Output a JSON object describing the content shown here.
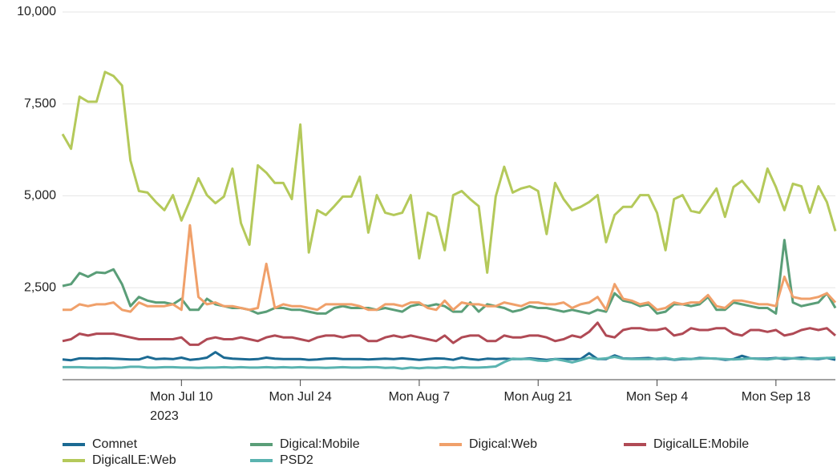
{
  "chart_data": {
    "type": "line",
    "x": [
      "2023-06-26",
      "2023-06-27",
      "2023-06-28",
      "2023-06-29",
      "2023-06-30",
      "2023-07-01",
      "2023-07-02",
      "2023-07-03",
      "2023-07-04",
      "2023-07-05",
      "2023-07-06",
      "2023-07-07",
      "2023-07-08",
      "2023-07-09",
      "2023-07-10",
      "2023-07-11",
      "2023-07-12",
      "2023-07-13",
      "2023-07-14",
      "2023-07-15",
      "2023-07-16",
      "2023-07-17",
      "2023-07-18",
      "2023-07-19",
      "2023-07-20",
      "2023-07-21",
      "2023-07-22",
      "2023-07-23",
      "2023-07-24",
      "2023-07-25",
      "2023-07-26",
      "2023-07-27",
      "2023-07-28",
      "2023-07-29",
      "2023-07-30",
      "2023-07-31",
      "2023-08-01",
      "2023-08-02",
      "2023-08-03",
      "2023-08-04",
      "2023-08-05",
      "2023-08-06",
      "2023-08-07",
      "2023-08-08",
      "2023-08-09",
      "2023-08-10",
      "2023-08-11",
      "2023-08-12",
      "2023-08-13",
      "2023-08-14",
      "2023-08-15",
      "2023-08-16",
      "2023-08-17",
      "2023-08-18",
      "2023-08-19",
      "2023-08-20",
      "2023-08-21",
      "2023-08-22",
      "2023-08-23",
      "2023-08-24",
      "2023-08-25",
      "2023-08-26",
      "2023-08-27",
      "2023-08-28",
      "2023-08-29",
      "2023-08-30",
      "2023-08-31",
      "2023-09-01",
      "2023-09-02",
      "2023-09-03",
      "2023-09-04",
      "2023-09-05",
      "2023-09-06",
      "2023-09-07",
      "2023-09-08",
      "2023-09-09",
      "2023-09-10",
      "2023-09-11",
      "2023-09-12",
      "2023-09-13",
      "2023-09-14",
      "2023-09-15",
      "2023-09-16",
      "2023-09-17",
      "2023-09-18",
      "2023-09-19",
      "2023-09-20",
      "2023-09-21",
      "2023-09-22",
      "2023-09-23",
      "2023-09-24",
      "2023-09-25"
    ],
    "xlim": [
      "2023-06-26",
      "2023-09-25"
    ],
    "xticks": [
      {
        "value": "2023-07-10",
        "label": "Mon Jul 10",
        "sublabel": "2023"
      },
      {
        "value": "2023-07-24",
        "label": "Mon Jul 24"
      },
      {
        "value": "2023-08-07",
        "label": "Mon Aug 7"
      },
      {
        "value": "2023-08-21",
        "label": "Mon Aug 21"
      },
      {
        "value": "2023-09-04",
        "label": "Mon Sep 4"
      },
      {
        "value": "2023-09-18",
        "label": "Mon Sep 18"
      }
    ],
    "ylim": [
      0,
      10000
    ],
    "yticks": [
      {
        "value": 2500,
        "label": "2,500"
      },
      {
        "value": 5000,
        "label": "5,000"
      },
      {
        "value": 7500,
        "label": "7,500"
      },
      {
        "value": 10000,
        "label": "10,000"
      }
    ],
    "grid": true,
    "series": [
      {
        "name": "Comnet",
        "color": "#1b6a93",
        "values": [
          550,
          530,
          580,
          580,
          570,
          580,
          570,
          560,
          550,
          550,
          620,
          560,
          570,
          560,
          600,
          540,
          560,
          600,
          750,
          600,
          570,
          560,
          550,
          560,
          600,
          570,
          560,
          560,
          560,
          540,
          550,
          570,
          580,
          560,
          560,
          560,
          550,
          560,
          570,
          560,
          580,
          560,
          540,
          560,
          580,
          570,
          540,
          600,
          560,
          540,
          570,
          560,
          570,
          560,
          560,
          580,
          560,
          540,
          560,
          560,
          560,
          560,
          720,
          560,
          560,
          660,
          580,
          570,
          580,
          590,
          560,
          570,
          540,
          560,
          560,
          590,
          580,
          570,
          540,
          560,
          650,
          580,
          570,
          570,
          590,
          560,
          580,
          600,
          570,
          560,
          590,
          540
        ]
      },
      {
        "name": "Digical:Mobile",
        "color": "#5a9e78",
        "values": [
          2550,
          2600,
          2900,
          2800,
          2920,
          2900,
          3000,
          2600,
          2000,
          2250,
          2150,
          2100,
          2100,
          2050,
          2200,
          1900,
          1900,
          2200,
          2050,
          2000,
          1950,
          1950,
          1900,
          1800,
          1850,
          1950,
          1950,
          1900,
          1900,
          1850,
          1800,
          1800,
          1950,
          2000,
          1950,
          1950,
          1950,
          1900,
          1950,
          1900,
          1850,
          2000,
          2050,
          2000,
          2050,
          2000,
          1850,
          1850,
          2100,
          1850,
          2050,
          2000,
          1950,
          1850,
          1900,
          2000,
          1950,
          1950,
          1900,
          1850,
          1900,
          1850,
          1800,
          1900,
          1850,
          2350,
          2150,
          2100,
          2000,
          2050,
          1800,
          1850,
          2050,
          2050,
          2000,
          2050,
          2250,
          1900,
          1900,
          2100,
          2050,
          2000,
          1950,
          1950,
          1800,
          3800,
          2100,
          2000,
          2050,
          2100,
          2350,
          1950
        ]
      },
      {
        "name": "Digical:Web",
        "color": "#f0a06a",
        "values": [
          1900,
          1900,
          2050,
          2000,
          2050,
          2050,
          2100,
          1900,
          1850,
          2100,
          2000,
          2000,
          2000,
          2050,
          1900,
          4200,
          2250,
          2050,
          2100,
          2000,
          2000,
          1950,
          1900,
          1950,
          3150,
          1950,
          2050,
          2000,
          2000,
          1950,
          1900,
          2050,
          2050,
          2050,
          2050,
          2000,
          1900,
          1900,
          2050,
          2050,
          2000,
          2100,
          2100,
          1950,
          1900,
          2150,
          1900,
          2100,
          2050,
          2050,
          2000,
          2000,
          2100,
          2050,
          2000,
          2100,
          2100,
          2050,
          2050,
          2100,
          1950,
          2050,
          2100,
          2250,
          1900,
          2600,
          2200,
          2150,
          2050,
          2100,
          1900,
          1950,
          2100,
          2050,
          2100,
          2100,
          2300,
          2000,
          1950,
          2150,
          2150,
          2100,
          2050,
          2050,
          2000,
          2800,
          2250,
          2200,
          2200,
          2250,
          2350,
          2100
        ]
      },
      {
        "name": "DigicalLE:Mobile",
        "color": "#b04a55",
        "values": [
          1050,
          1100,
          1250,
          1200,
          1250,
          1250,
          1250,
          1200,
          1150,
          1100,
          1100,
          1100,
          1100,
          1100,
          1150,
          950,
          950,
          1100,
          1150,
          1100,
          1100,
          1150,
          1100,
          1050,
          1150,
          1200,
          1150,
          1150,
          1100,
          1050,
          1150,
          1200,
          1200,
          1150,
          1200,
          1200,
          1050,
          1050,
          1150,
          1200,
          1150,
          1200,
          1150,
          1100,
          1050,
          1200,
          1000,
          1150,
          1200,
          1200,
          1050,
          1050,
          1200,
          1150,
          1150,
          1200,
          1200,
          1150,
          1050,
          1100,
          1200,
          1150,
          1300,
          1550,
          1200,
          1150,
          1350,
          1400,
          1400,
          1350,
          1350,
          1400,
          1200,
          1250,
          1400,
          1350,
          1350,
          1400,
          1400,
          1250,
          1200,
          1350,
          1350,
          1300,
          1350,
          1200,
          1250,
          1350,
          1400,
          1350,
          1400,
          1200
        ]
      },
      {
        "name": "DigicalLE:Web",
        "color": "#b4c95a",
        "values": [
          6680,
          6280,
          7700,
          7560,
          7560,
          8370,
          8260,
          8000,
          5960,
          5130,
          5090,
          4830,
          4610,
          5020,
          4330,
          4870,
          5480,
          5020,
          4800,
          4980,
          5740,
          4260,
          3670,
          5830,
          5630,
          5350,
          5350,
          4910,
          6940,
          3460,
          4610,
          4480,
          4720,
          4980,
          4980,
          5520,
          4000,
          5020,
          4540,
          4480,
          4540,
          5020,
          3300,
          4540,
          4430,
          3520,
          5020,
          5130,
          4910,
          4720,
          2910,
          4980,
          5790,
          5090,
          5200,
          5260,
          5130,
          3960,
          5350,
          4910,
          4610,
          4700,
          4830,
          5020,
          3740,
          4480,
          4700,
          4700,
          5020,
          5020,
          4540,
          3520,
          4910,
          5020,
          4590,
          4540,
          4870,
          5200,
          4430,
          5240,
          5410,
          5130,
          4830,
          5740,
          5240,
          4610,
          5330,
          5260,
          4540,
          5260,
          4830,
          4040
        ]
      },
      {
        "name": "PSD2",
        "color": "#5ab3b0",
        "values": [
          340,
          340,
          340,
          330,
          330,
          330,
          320,
          330,
          350,
          350,
          330,
          330,
          340,
          340,
          330,
          330,
          320,
          330,
          330,
          340,
          330,
          340,
          330,
          330,
          340,
          330,
          340,
          330,
          340,
          330,
          330,
          320,
          330,
          340,
          330,
          330,
          340,
          340,
          320,
          330,
          300,
          330,
          310,
          330,
          320,
          340,
          320,
          340,
          330,
          330,
          340,
          360,
          480,
          570,
          560,
          560,
          520,
          510,
          560,
          520,
          470,
          530,
          600,
          560,
          580,
          620,
          570,
          560,
          560,
          560,
          570,
          590,
          550,
          580,
          560,
          570,
          580,
          570,
          560,
          550,
          560,
          580,
          560,
          550,
          580,
          590,
          580,
          560,
          570,
          580,
          590,
          600
        ]
      }
    ]
  }
}
